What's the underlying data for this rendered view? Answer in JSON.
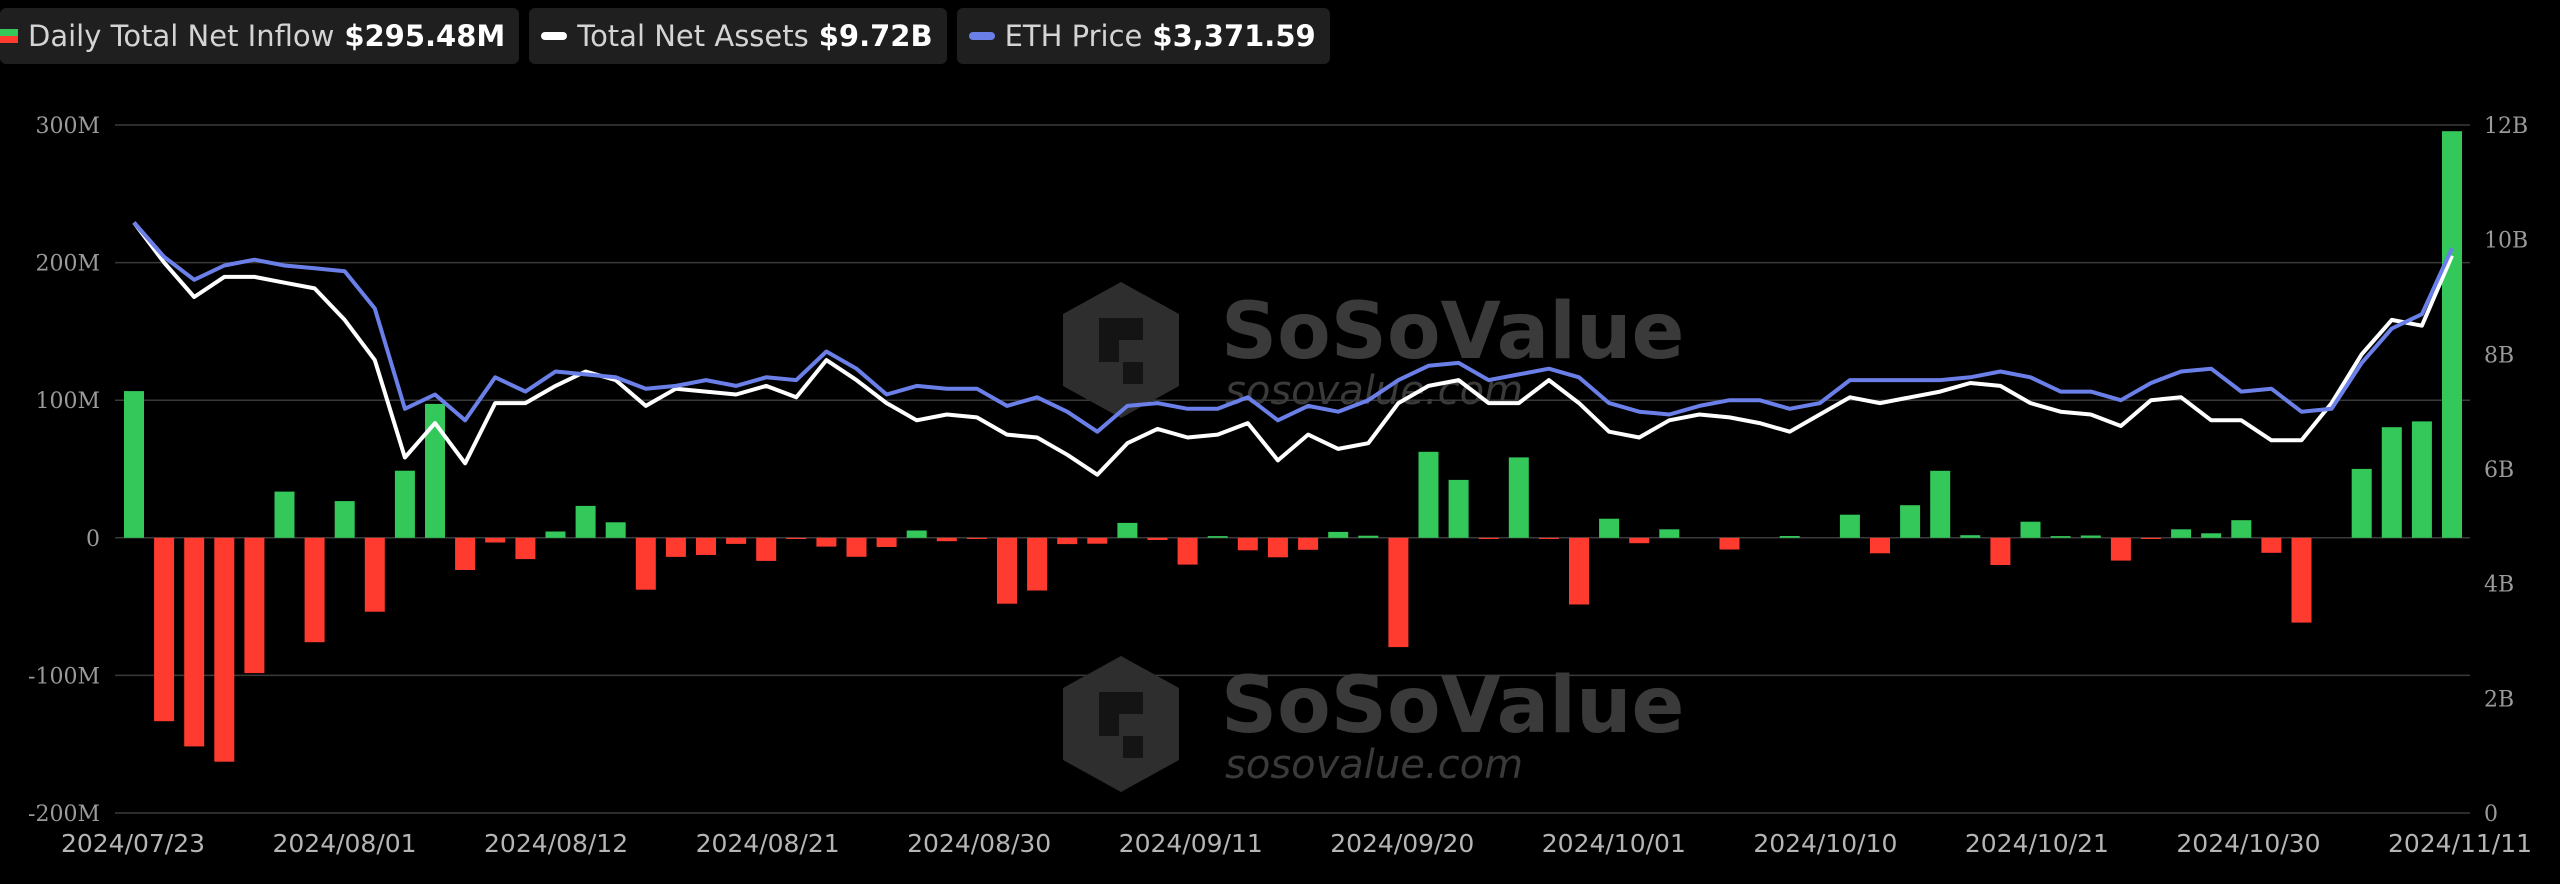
{
  "legend": {
    "inflow": {
      "label": "Daily Total Net Inflow",
      "value": "$295.48M"
    },
    "assets": {
      "label": "Total Net Assets",
      "value": "$9.72B"
    },
    "price": {
      "label": "ETH Price",
      "value": "$3,371.59"
    }
  },
  "watermark": {
    "brand": "SoSoValue",
    "url": "sosovalue.com"
  },
  "colors": {
    "positive": "#34c759",
    "negative": "#ff3b30",
    "assets_line": "#ffffff",
    "price_line": "#6b7fe8",
    "grid": "#3a3a3a"
  },
  "chart_data": {
    "type": "bar",
    "title": "",
    "y_left": {
      "ticks": [
        "300M",
        "200M",
        "100M",
        "0",
        "-100M",
        "-200M"
      ],
      "range": [
        -200,
        300
      ],
      "unit": "M"
    },
    "y_right": {
      "ticks": [
        "12B",
        "10B",
        "8B",
        "6B",
        "4B",
        "2B",
        "0"
      ],
      "range": [
        0,
        12
      ],
      "unit": "B"
    },
    "x_tick_labels": [
      "2024/07/23",
      "2024/08/01",
      "2024/08/12",
      "2024/08/21",
      "2024/08/30",
      "2024/09/11",
      "2024/09/20",
      "2024/10/01",
      "2024/10/10",
      "2024/10/21",
      "2024/10/30",
      "2024/11/11"
    ],
    "series": [
      {
        "name": "Daily Total Net Inflow",
        "type": "bar",
        "axis": "left",
        "values": [
          106.6,
          -133.3,
          -151.6,
          -162.7,
          -98.3,
          33.6,
          -75.9,
          26.7,
          -53.7,
          48.8,
          97.3,
          -23.4,
          -3.4,
          -15.5,
          4.6,
          23.2,
          11.3,
          -37.7,
          -13.9,
          -12.5,
          -4.4,
          -16.8,
          -0.7,
          -6.4,
          -13.8,
          -6.7,
          5.3,
          -2.5,
          -0.8,
          -47.9,
          -38.3,
          -4.6,
          -4.3,
          10.8,
          -1.6,
          -19.5,
          1.2,
          -9.1,
          -14.2,
          -8.7,
          4.3,
          1.5,
          -79.4,
          62.5,
          42.1,
          -0.3,
          58.4,
          -0.2,
          -48.5,
          13.9,
          -3.9,
          6.2,
          0,
          -8.5,
          0,
          1.3,
          0,
          16.8,
          -11.3,
          23.7,
          48.7,
          1.9,
          -19.8,
          11.7,
          1.2,
          1.7,
          -16.6,
          -0.3,
          6.2,
          3.3,
          12.8,
          -10.9,
          -61.6,
          0,
          50.1,
          80.4,
          84.6,
          295.48
        ]
      },
      {
        "name": "Total Net Assets",
        "type": "line",
        "axis": "right",
        "values": [
          10.3,
          9.6,
          9.0,
          9.35,
          9.35,
          9.25,
          9.15,
          8.6,
          7.9,
          6.2,
          6.8,
          6.1,
          7.15,
          7.15,
          7.45,
          7.7,
          7.55,
          7.1,
          7.4,
          7.35,
          7.3,
          7.45,
          7.25,
          7.9,
          7.55,
          7.15,
          6.85,
          6.95,
          6.9,
          6.6,
          6.55,
          6.25,
          5.9,
          6.45,
          6.7,
          6.55,
          6.6,
          6.8,
          6.15,
          6.6,
          6.35,
          6.45,
          7.15,
          7.45,
          7.55,
          7.15,
          7.15,
          7.55,
          7.15,
          6.65,
          6.55,
          6.85,
          6.95,
          6.9,
          6.8,
          6.65,
          6.95,
          7.25,
          7.15,
          7.25,
          7.35,
          7.5,
          7.45,
          7.15,
          7.0,
          6.95,
          6.75,
          7.2,
          7.25,
          6.85,
          6.85,
          6.5,
          6.5,
          7.15,
          8.0,
          8.6,
          8.5,
          9.72
        ]
      },
      {
        "name": "ETH Price",
        "type": "line",
        "axis": "right",
        "values": [
          10.3,
          9.7,
          9.3,
          9.55,
          9.65,
          9.55,
          9.5,
          9.45,
          8.8,
          7.05,
          7.3,
          6.85,
          7.6,
          7.35,
          7.7,
          7.65,
          7.6,
          7.4,
          7.45,
          7.55,
          7.45,
          7.6,
          7.55,
          8.05,
          7.75,
          7.3,
          7.45,
          7.4,
          7.4,
          7.1,
          7.25,
          7.0,
          6.65,
          7.1,
          7.15,
          7.05,
          7.05,
          7.25,
          6.85,
          7.1,
          7.0,
          7.2,
          7.55,
          7.8,
          7.85,
          7.55,
          7.65,
          7.75,
          7.6,
          7.15,
          7.0,
          6.95,
          7.1,
          7.2,
          7.2,
          7.05,
          7.15,
          7.55,
          7.55,
          7.55,
          7.55,
          7.6,
          7.7,
          7.6,
          7.35,
          7.35,
          7.2,
          7.5,
          7.7,
          7.75,
          7.35,
          7.4,
          7.0,
          7.05,
          7.85,
          8.45,
          8.7,
          9.85
        ]
      }
    ],
    "grid": true,
    "legend_position": "top-left"
  }
}
